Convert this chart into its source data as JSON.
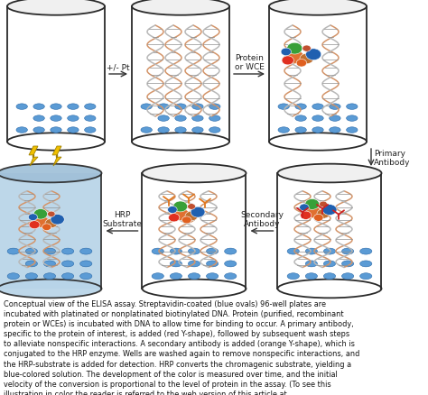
{
  "bg_color": "#ffffff",
  "edge_color": "#2a2a2a",
  "blue_oval_color": "#5b9bd5",
  "blue_oval_edge": "#2a6aaa",
  "dna_color1": "#d4956a",
  "dna_color2": "#b8b8b8",
  "dna_rung_color": "#909090",
  "blob_colors": [
    "#e05028",
    "#e08020",
    "#3878c0",
    "#38a038",
    "#c06820",
    "#b05070",
    "#c0c0a0"
  ],
  "arrow_color": "#333333",
  "label_color": "#222222",
  "caption_color": "#111111",
  "label_fontsize": 6.5,
  "caption_fontsize": 5.9,
  "lightning_color": "#f0c000",
  "light_blue_fill": "#b8d4e8",
  "light_blue_top": "#a0c0d8",
  "caption": "Conceptual view of the ELISA assay. Streptavidin-coated (blue ovals) 96-well plates are incubated with platinated or nonplatinated biotinylated DNA. Protein (purified, recombinant protein or WCEs) is incubated with DNA to allow time for binding to occur. A primary antibody, specific to the protein of interest, is added (red Y-shape), followed by subsequent wash steps to alleviate nonspecific interactions. A secondary antibody is added (orange Y-shape), which is conjugated to the HRP enzyme. Wells are washed again to remove nonspecific interactions, and the HRP-substrate is added for detection. HRP converts the chromagenic substrate, yielding a blue-colored solution. The development of the color is measured over time, and the initial velocity of the conversion is proportional to the level of protein in the assay. (To see this illustration in color the reader is referred to the web version of this article at www.liebertonline.com=ars)."
}
